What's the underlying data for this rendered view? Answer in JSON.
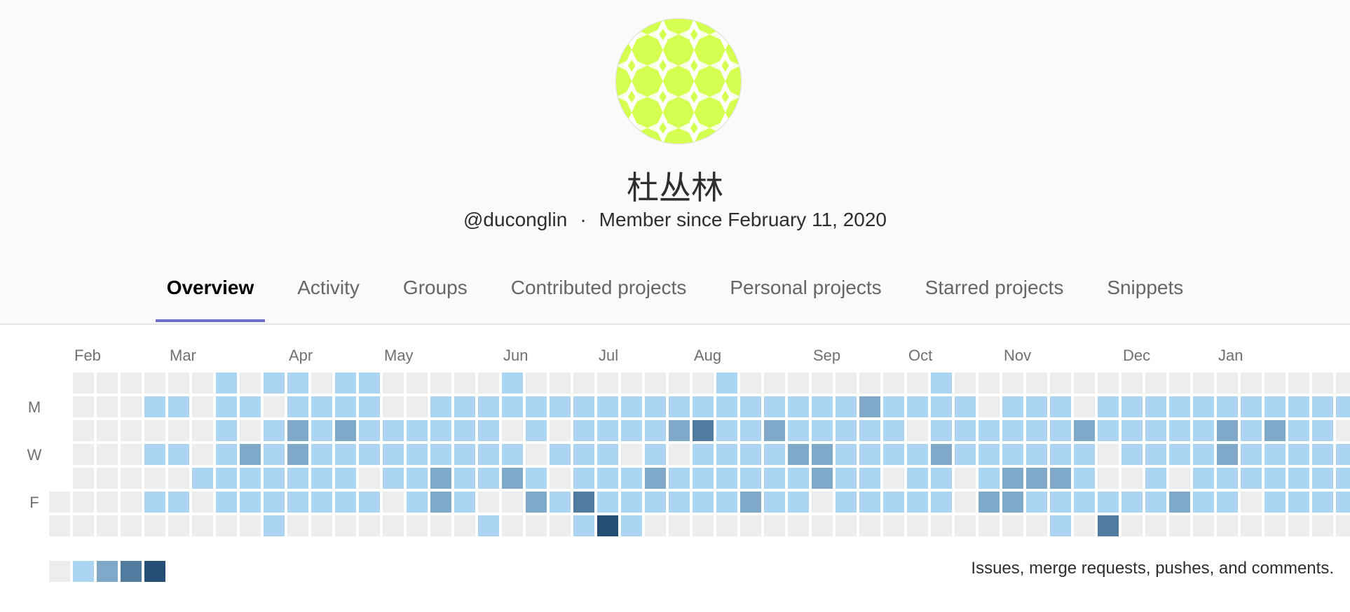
{
  "profile": {
    "name": "杜丛林",
    "username": "@duconglin",
    "separator": "·",
    "member_since": "Member since February 11, 2020"
  },
  "tabs": [
    {
      "label": "Overview",
      "active": true
    },
    {
      "label": "Activity",
      "active": false
    },
    {
      "label": "Groups",
      "active": false
    },
    {
      "label": "Contributed projects",
      "active": false
    },
    {
      "label": "Personal projects",
      "active": false
    },
    {
      "label": "Starred projects",
      "active": false
    },
    {
      "label": "Snippets",
      "active": false
    }
  ],
  "chart_data": {
    "type": "heatmap",
    "months": [
      {
        "label": "Feb",
        "week": 1
      },
      {
        "label": "Mar",
        "week": 5
      },
      {
        "label": "Apr",
        "week": 10
      },
      {
        "label": "May",
        "week": 14
      },
      {
        "label": "Jun",
        "week": 19
      },
      {
        "label": "Jul",
        "week": 23
      },
      {
        "label": "Aug",
        "week": 27
      },
      {
        "label": "Sep",
        "week": 32
      },
      {
        "label": "Oct",
        "week": 36
      },
      {
        "label": "Nov",
        "week": 40
      },
      {
        "label": "Dec",
        "week": 45
      },
      {
        "label": "Jan",
        "week": 49
      }
    ],
    "weekday_labels": [
      {
        "label": "M",
        "row": 1
      },
      {
        "label": "W",
        "row": 3
      },
      {
        "label": "F",
        "row": 5
      }
    ],
    "palette": [
      "#ededed",
      "#acd5f2",
      "#7fa8c9",
      "#527ba0",
      "#254e77"
    ],
    "levels_by_row": [
      "-000000101101100000100000000100000000100000000000000000",
      "-000110110111100111111111111111111211110111011111111111",
      "-000000101212111111010111123112111110111111211111212110",
      "-000110121211111111101110101111221111211111101111211111",
      "-000001111111011211210111211111121101101222100101111111",
      "0000110111111101210021311111121101111102211111121101111",
      "0000000001000000001000141000000000000000001030000000000"
    ],
    "legend_label": "Issues, merge requests, pushes, and comments."
  }
}
